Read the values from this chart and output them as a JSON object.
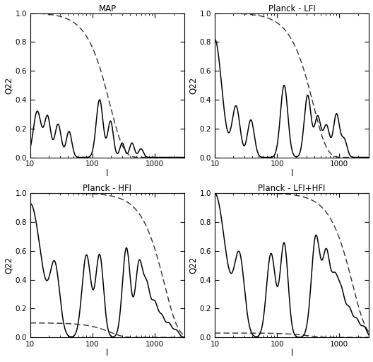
{
  "titles": [
    "MAP",
    "Planck - LFI",
    "Planck - HFI",
    "Planck - LFI+HFI"
  ],
  "ylabel_left": "Q22",
  "xlabel": "l",
  "xlim": [
    10,
    3000
  ],
  "ylim": [
    0.0,
    1.0
  ],
  "figsize": [
    5.28,
    5.12
  ],
  "dpi": 100
}
